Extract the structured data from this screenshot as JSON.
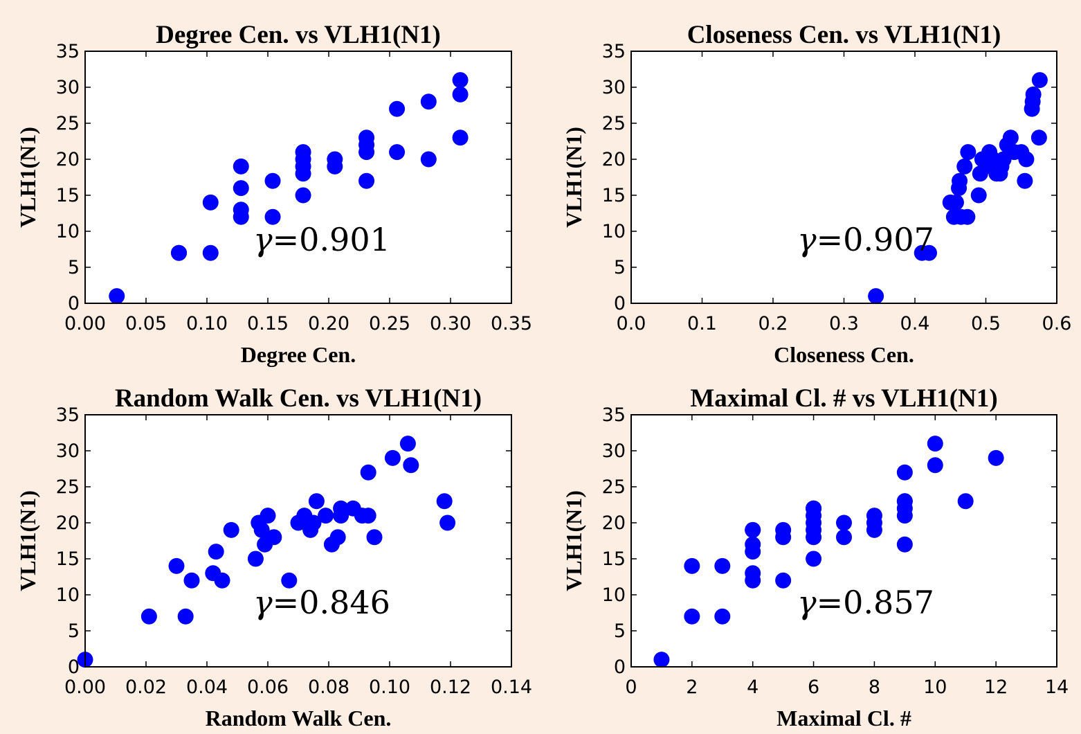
{
  "colors": {
    "background": "#fdeee3",
    "marker": "#0000ff",
    "axes_bg": "#ffffff"
  },
  "chart_data": [
    {
      "type": "scatter",
      "title": "Degree Cen. vs VLH1(N1)",
      "xlabel": "Degree Cen.",
      "ylabel": "VLH1(N1)",
      "xlim": [
        0.0,
        0.35
      ],
      "ylim": [
        0,
        35
      ],
      "xticks": [
        "0.00",
        "0.05",
        "0.10",
        "0.15",
        "0.20",
        "0.25",
        "0.30",
        "0.35"
      ],
      "yticks": [
        "0",
        "5",
        "10",
        "15",
        "20",
        "25",
        "30",
        "35"
      ],
      "annotation": {
        "symbol": "γ",
        "eq": "=",
        "value": "0.901"
      },
      "x": [
        0.026,
        0.077,
        0.077,
        0.103,
        0.103,
        0.128,
        0.128,
        0.128,
        0.128,
        0.154,
        0.154,
        0.179,
        0.179,
        0.179,
        0.179,
        0.179,
        0.205,
        0.205,
        0.231,
        0.231,
        0.231,
        0.231,
        0.256,
        0.256,
        0.282,
        0.282,
        0.308,
        0.308,
        0.308
      ],
      "y": [
        1,
        7,
        7,
        7,
        14,
        12,
        13,
        16,
        19,
        12,
        17,
        15,
        18,
        19,
        20,
        21,
        19,
        20,
        17,
        21,
        22,
        23,
        21,
        27,
        20,
        28,
        23,
        29,
        31
      ]
    },
    {
      "type": "scatter",
      "title": "Closeness Cen. vs VLH1(N1)",
      "xlabel": "Closeness Cen.",
      "ylabel": "VLH1(N1)",
      "xlim": [
        0.0,
        0.6
      ],
      "ylim": [
        0,
        35
      ],
      "xticks": [
        "0.0",
        "0.1",
        "0.2",
        "0.3",
        "0.4",
        "0.5",
        "0.6"
      ],
      "yticks": [
        "0",
        "5",
        "10",
        "15",
        "20",
        "25",
        "30",
        "35"
      ],
      "annotation": {
        "symbol": "γ",
        "eq": "=",
        "value": "0.907"
      },
      "x": [
        0.345,
        0.41,
        0.42,
        0.45,
        0.455,
        0.458,
        0.462,
        0.463,
        0.465,
        0.47,
        0.474,
        0.475,
        0.49,
        0.492,
        0.495,
        0.505,
        0.508,
        0.51,
        0.515,
        0.52,
        0.522,
        0.525,
        0.53,
        0.535,
        0.54,
        0.55,
        0.555,
        0.557,
        0.565,
        0.566,
        0.567,
        0.575,
        0.576
      ],
      "y": [
        1,
        7,
        7,
        14,
        12,
        14,
        16,
        17,
        12,
        19,
        12,
        21,
        15,
        18,
        20,
        21,
        19,
        20,
        18,
        18,
        19,
        20,
        22,
        23,
        21,
        21,
        17,
        20,
        27,
        28,
        29,
        23,
        31
      ]
    },
    {
      "type": "scatter",
      "title": "Random Walk Cen. vs VLH1(N1)",
      "xlabel": "Random Walk Cen.",
      "ylabel": "VLH1(N1)",
      "xlim": [
        0.0,
        0.14
      ],
      "ylim": [
        0,
        35
      ],
      "xticks": [
        "0.00",
        "0.02",
        "0.04",
        "0.06",
        "0.08",
        "0.10",
        "0.12",
        "0.14"
      ],
      "yticks": [
        "0",
        "5",
        "10",
        "15",
        "20",
        "25",
        "30",
        "35"
      ],
      "annotation": {
        "symbol": "γ",
        "eq": "=",
        "value": "0.846"
      },
      "x": [
        0.0,
        0.021,
        0.033,
        0.03,
        0.035,
        0.042,
        0.043,
        0.045,
        0.048,
        0.056,
        0.057,
        0.058,
        0.059,
        0.06,
        0.062,
        0.067,
        0.07,
        0.072,
        0.074,
        0.075,
        0.076,
        0.079,
        0.081,
        0.083,
        0.084,
        0.084,
        0.088,
        0.091,
        0.093,
        0.093,
        0.095,
        0.101,
        0.106,
        0.107,
        0.118,
        0.119
      ],
      "y": [
        1,
        7,
        7,
        14,
        12,
        13,
        16,
        12,
        19,
        15,
        20,
        19,
        17,
        21,
        18,
        12,
        20,
        21,
        19,
        20,
        23,
        21,
        17,
        18,
        21,
        22,
        22,
        21,
        21,
        27,
        18,
        29,
        31,
        28,
        23,
        20
      ]
    },
    {
      "type": "scatter",
      "title": "Maximal Cl. # vs VLH1(N1)",
      "xlabel": "Maximal Cl. #",
      "ylabel": "VLH1(N1)",
      "xlim": [
        0,
        14
      ],
      "ylim": [
        0,
        35
      ],
      "xticks": [
        "0",
        "2",
        "4",
        "6",
        "8",
        "10",
        "12",
        "14"
      ],
      "yticks": [
        "0",
        "5",
        "10",
        "15",
        "20",
        "25",
        "30",
        "35"
      ],
      "annotation": {
        "symbol": "γ",
        "eq": "=",
        "value": "0.857"
      },
      "x": [
        1,
        2,
        2,
        3,
        3,
        4,
        4,
        4,
        4,
        4,
        4,
        5,
        5,
        5,
        6,
        6,
        6,
        6,
        6,
        6,
        6,
        7,
        7,
        8,
        8,
        8,
        9,
        9,
        9,
        9,
        9,
        9,
        10,
        10,
        11,
        12
      ],
      "y": [
        1,
        7,
        14,
        7,
        14,
        12,
        13,
        16,
        17,
        19,
        19,
        12,
        18,
        19,
        15,
        18,
        19,
        20,
        21,
        22,
        22,
        18,
        20,
        19,
        20,
        21,
        17,
        21,
        22,
        23,
        23,
        27,
        28,
        31,
        23,
        29
      ]
    }
  ]
}
